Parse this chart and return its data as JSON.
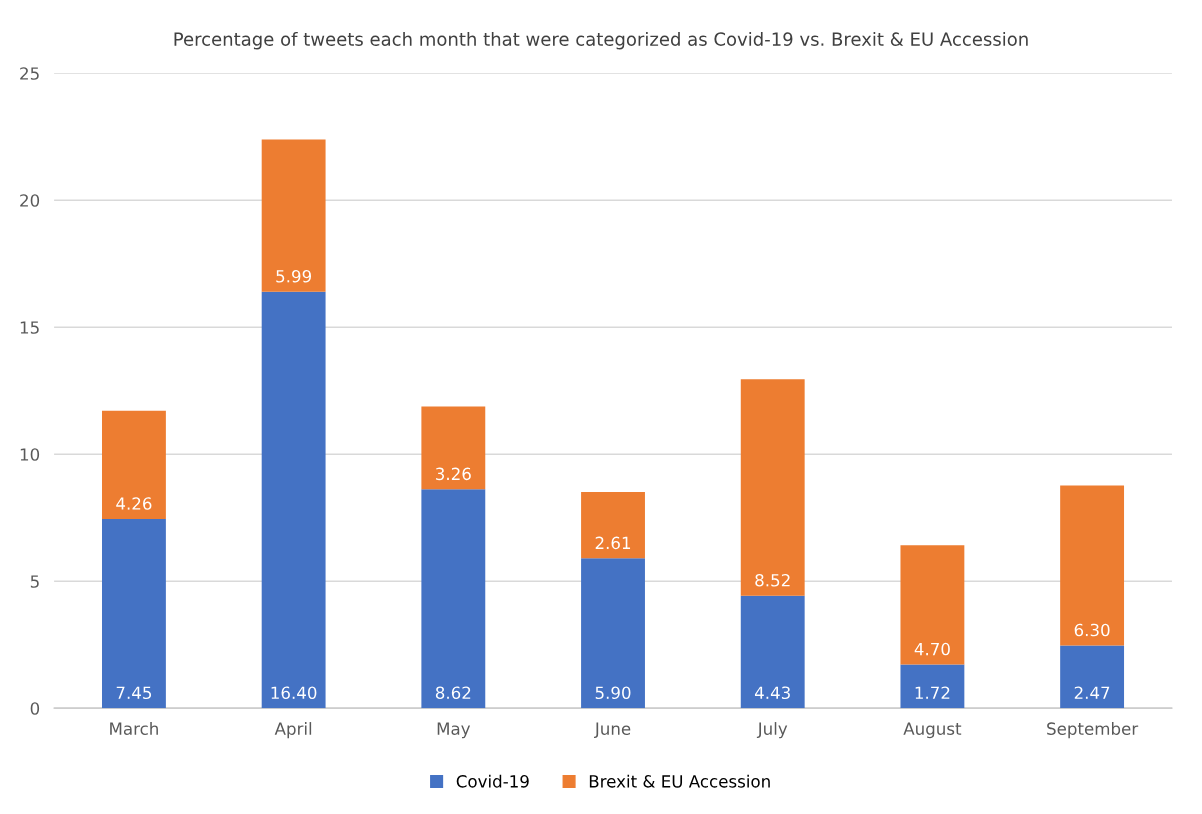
{
  "chart_data": {
    "type": "bar",
    "title": "Percentage of tweets each month that were categorized as Covid-19 vs. Brexit & EU Accession",
    "categories": [
      "March",
      "April",
      "May",
      "June",
      "July",
      "August",
      "September"
    ],
    "stacked": true,
    "series": [
      {
        "name": "Covid-19",
        "color": "#4472c4",
        "values": [
          7.45,
          16.4,
          8.62,
          5.9,
          4.43,
          1.72,
          2.47
        ],
        "value_labels": [
          "7.45",
          "16.40",
          "8.62",
          "5.90",
          "4.43",
          "1.72",
          "2.47"
        ]
      },
      {
        "name": "Brexit & EU Accession",
        "color": "#ed7d31",
        "values": [
          4.26,
          5.99,
          3.26,
          2.61,
          8.52,
          4.7,
          6.3
        ],
        "value_labels": [
          "4.26",
          "5.99",
          "3.26",
          "2.61",
          "8.52",
          "4.70",
          "6.30"
        ]
      }
    ],
    "ylim": [
      0,
      25
    ],
    "yticks": [
      0,
      5,
      10,
      15,
      20,
      25
    ],
    "grid": "y",
    "legend": "bottom"
  }
}
